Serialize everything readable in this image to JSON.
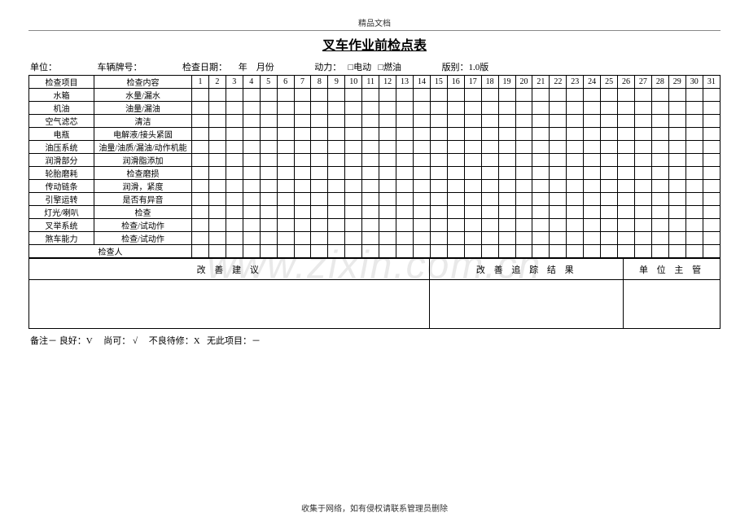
{
  "header": {
    "small_label": "精品文档",
    "title": "叉车作业前检点表"
  },
  "info": {
    "unit_label": "单位：",
    "plate_label": "车辆牌号：",
    "date_label": "检查日期：",
    "year_label": "年",
    "month_label": "月份",
    "power_label": "动力：",
    "electric_label": "□电动",
    "fuel_label": "□燃油",
    "version_label": "版别：1.0版"
  },
  "table": {
    "col_item": "检查项目",
    "col_content": "检查内容",
    "days": [
      "1",
      "2",
      "3",
      "4",
      "5",
      "6",
      "7",
      "8",
      "9",
      "10",
      "11",
      "12",
      "13",
      "14",
      "15",
      "16",
      "17",
      "18",
      "19",
      "20",
      "21",
      "22",
      "23",
      "24",
      "25",
      "26",
      "27",
      "28",
      "29",
      "30",
      "31"
    ],
    "rows": [
      {
        "item": "水箱",
        "content": "水量/漏水"
      },
      {
        "item": "机油",
        "content": "油量/漏油"
      },
      {
        "item": "空气滤芯",
        "content": "清洁"
      },
      {
        "item": "电瓶",
        "content": "电解液/接头紧固"
      },
      {
        "item": "油压系统",
        "content": "油量/油质/漏油/动作机能"
      },
      {
        "item": "润滑部分",
        "content": "润滑脂添加"
      },
      {
        "item": "轮胎磨耗",
        "content": "检查磨损"
      },
      {
        "item": "传动链条",
        "content": "润滑，紧度"
      },
      {
        "item": "引擎运转",
        "content": "是否有异音"
      },
      {
        "item": "灯光/喇叭",
        "content": "检查"
      },
      {
        "item": "叉举系统",
        "content": "检查/试动作"
      },
      {
        "item": "煞车能力",
        "content": "检查/试动作"
      }
    ],
    "inspector": "检查人"
  },
  "bottom": {
    "suggestion": "改 善 建 议",
    "tracking": "改 善 追 踪 结 果",
    "supervisor": "单 位 主 管",
    "col_widths": {
      "suggestion": "58%",
      "tracking": "28%",
      "supervisor": "14%"
    }
  },
  "remark": "备注－ 良好：V     尚可： √     不良待修：X   无此项目：－",
  "footer": "收集于网络，如有侵权请联系管理员删除",
  "watermark": "www.zixin.com.cn",
  "styling": {
    "page_bg": "#ffffff",
    "text_color": "#000000",
    "border_color": "#000000",
    "watermark_color": "rgba(200,200,200,0.4)",
    "font_family": "SimSun",
    "title_fontsize": 16,
    "body_fontsize": 11,
    "table_fontsize": 10
  }
}
